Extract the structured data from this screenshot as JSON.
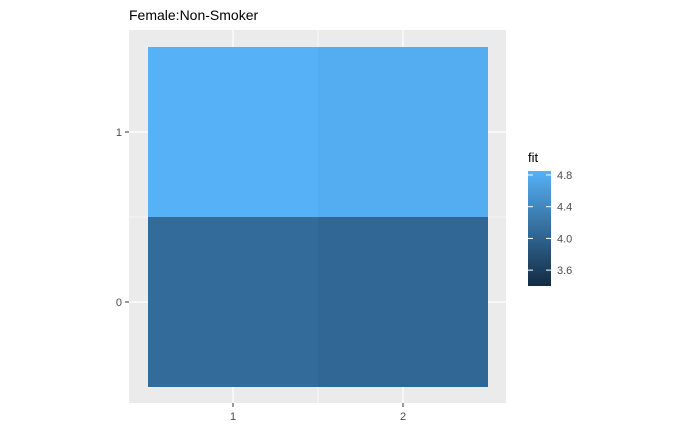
{
  "chart_data": {
    "type": "heatmap",
    "title": "Female:Non-Smoker",
    "xlabel": "",
    "ylabel": "",
    "x_categories": [
      "1",
      "2"
    ],
    "y_categories": [
      "0",
      "1"
    ],
    "x_ticks": [
      "1",
      "2"
    ],
    "y_ticks": [
      "0",
      "1"
    ],
    "cells": [
      {
        "x": "1",
        "y": "0",
        "value": 4.1
      },
      {
        "x": "2",
        "y": "0",
        "value": 4.05
      },
      {
        "x": "1",
        "y": "1",
        "value": 4.85
      },
      {
        "x": "2",
        "y": "1",
        "value": 4.8
      }
    ],
    "legend": {
      "title": "fit",
      "ticks": [
        "3.6",
        "4.0",
        "4.4",
        "4.8"
      ],
      "tick_values": [
        3.6,
        4.0,
        4.4,
        4.8
      ],
      "range": [
        3.4,
        4.85
      ],
      "position": "right"
    },
    "colors": {
      "low": "#132B43",
      "high": "#56B1F7",
      "panel_background": "#EBEBEB",
      "grid": "#FFFFFF"
    },
    "grid": true
  }
}
